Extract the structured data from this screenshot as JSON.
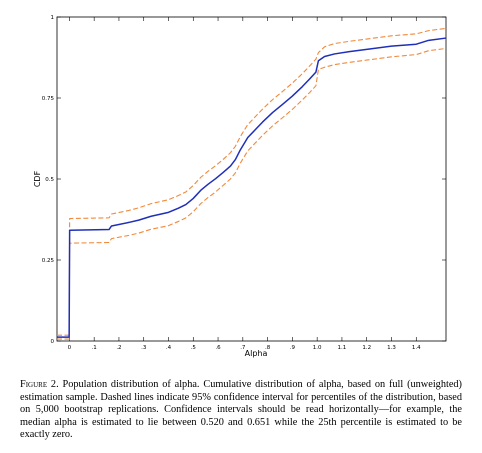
{
  "chart_data": {
    "type": "line",
    "title": "",
    "xlabel": "Alpha",
    "ylabel": "CDF",
    "xlim": [
      -0.05,
      1.52
    ],
    "ylim": [
      0,
      1
    ],
    "grid": false,
    "legend": "none",
    "x_ticks": [
      {
        "value": 0,
        "label": "0"
      },
      {
        "value": 0.1,
        "label": ".1"
      },
      {
        "value": 0.2,
        "label": ".2"
      },
      {
        "value": 0.3,
        "label": ".3"
      },
      {
        "value": 0.4,
        "label": ".4"
      },
      {
        "value": 0.5,
        "label": ".5"
      },
      {
        "value": 0.6,
        "label": ".6"
      },
      {
        "value": 0.7,
        "label": ".7"
      },
      {
        "value": 0.8,
        "label": ".8"
      },
      {
        "value": 0.9,
        "label": ".9"
      },
      {
        "value": 1.0,
        "label": "1.0"
      },
      {
        "value": 1.1,
        "label": "1.1"
      },
      {
        "value": 1.2,
        "label": "1.2"
      },
      {
        "value": 1.3,
        "label": "1.3"
      },
      {
        "value": 1.4,
        "label": "1.4"
      }
    ],
    "y_ticks": [
      {
        "value": 0,
        "label": "0"
      },
      {
        "value": 0.25,
        "label": "0.25"
      },
      {
        "value": 0.5,
        "label": "0.5"
      },
      {
        "value": 0.75,
        "label": "0.75"
      },
      {
        "value": 1,
        "label": "1"
      }
    ],
    "series": [
      {
        "role": "median",
        "color": "#1f2fb8",
        "dashed": false,
        "x": [
          -0.05,
          -0.001,
          0.001,
          0.16,
          0.17,
          0.24,
          0.28,
          0.33,
          0.4,
          0.44,
          0.47,
          0.5,
          0.53,
          0.56,
          0.59,
          0.62,
          0.65,
          0.67,
          0.69,
          0.72,
          0.75,
          0.78,
          0.82,
          0.86,
          0.9,
          0.94,
          0.97,
          0.995,
          1.005,
          1.03,
          1.07,
          1.13,
          1.2,
          1.3,
          1.4,
          1.45,
          1.52
        ],
        "y": [
          0.012,
          0.012,
          0.342,
          0.344,
          0.355,
          0.366,
          0.373,
          0.385,
          0.397,
          0.41,
          0.421,
          0.44,
          0.465,
          0.484,
          0.501,
          0.52,
          0.54,
          0.56,
          0.59,
          0.628,
          0.652,
          0.676,
          0.705,
          0.73,
          0.756,
          0.785,
          0.809,
          0.83,
          0.865,
          0.878,
          0.886,
          0.893,
          0.9,
          0.91,
          0.916,
          0.928,
          0.935
        ]
      },
      {
        "role": "upper 95% CI",
        "color": "#f08a3c",
        "dashed": true,
        "x": [
          -0.05,
          -0.001,
          0.001,
          0.16,
          0.17,
          0.24,
          0.28,
          0.33,
          0.4,
          0.44,
          0.47,
          0.5,
          0.53,
          0.56,
          0.59,
          0.62,
          0.65,
          0.67,
          0.69,
          0.72,
          0.75,
          0.78,
          0.82,
          0.86,
          0.9,
          0.94,
          0.97,
          0.995,
          1.005,
          1.03,
          1.07,
          1.13,
          1.2,
          1.3,
          1.4,
          1.45,
          1.52
        ],
        "y": [
          0.018,
          0.018,
          0.378,
          0.38,
          0.392,
          0.403,
          0.411,
          0.424,
          0.436,
          0.449,
          0.46,
          0.48,
          0.505,
          0.524,
          0.541,
          0.56,
          0.581,
          0.601,
          0.631,
          0.668,
          0.692,
          0.716,
          0.745,
          0.77,
          0.796,
          0.825,
          0.849,
          0.87,
          0.89,
          0.908,
          0.918,
          0.925,
          0.932,
          0.942,
          0.948,
          0.958,
          0.965
        ]
      },
      {
        "role": "lower 95% CI",
        "color": "#f08a3c",
        "dashed": true,
        "x": [
          -0.05,
          -0.001,
          0.001,
          0.16,
          0.17,
          0.24,
          0.28,
          0.33,
          0.4,
          0.44,
          0.47,
          0.5,
          0.53,
          0.56,
          0.59,
          0.62,
          0.65,
          0.67,
          0.69,
          0.72,
          0.75,
          0.78,
          0.82,
          0.86,
          0.9,
          0.94,
          0.97,
          0.995,
          1.005,
          1.03,
          1.07,
          1.13,
          1.2,
          1.3,
          1.4,
          1.45,
          1.52
        ],
        "y": [
          0.006,
          0.006,
          0.302,
          0.304,
          0.316,
          0.326,
          0.333,
          0.345,
          0.356,
          0.369,
          0.38,
          0.399,
          0.424,
          0.443,
          0.46,
          0.48,
          0.5,
          0.519,
          0.549,
          0.587,
          0.611,
          0.635,
          0.664,
          0.689,
          0.715,
          0.744,
          0.767,
          0.788,
          0.838,
          0.845,
          0.853,
          0.86,
          0.867,
          0.877,
          0.884,
          0.896,
          0.903
        ]
      }
    ]
  },
  "caption": {
    "label": "Figure 2.",
    "text": "Population distribution of alpha. Cumulative distribution of alpha, based on full (unweighted) estimation sample. Dashed lines indicate 95% confidence interval for percentiles of the distribution, based on 5,000 bootstrap replications. Confidence intervals should be read horizontally—for example, the median alpha is estimated to lie between 0.520 and 0.651 while the 25th percentile is estimated to be exactly zero."
  }
}
